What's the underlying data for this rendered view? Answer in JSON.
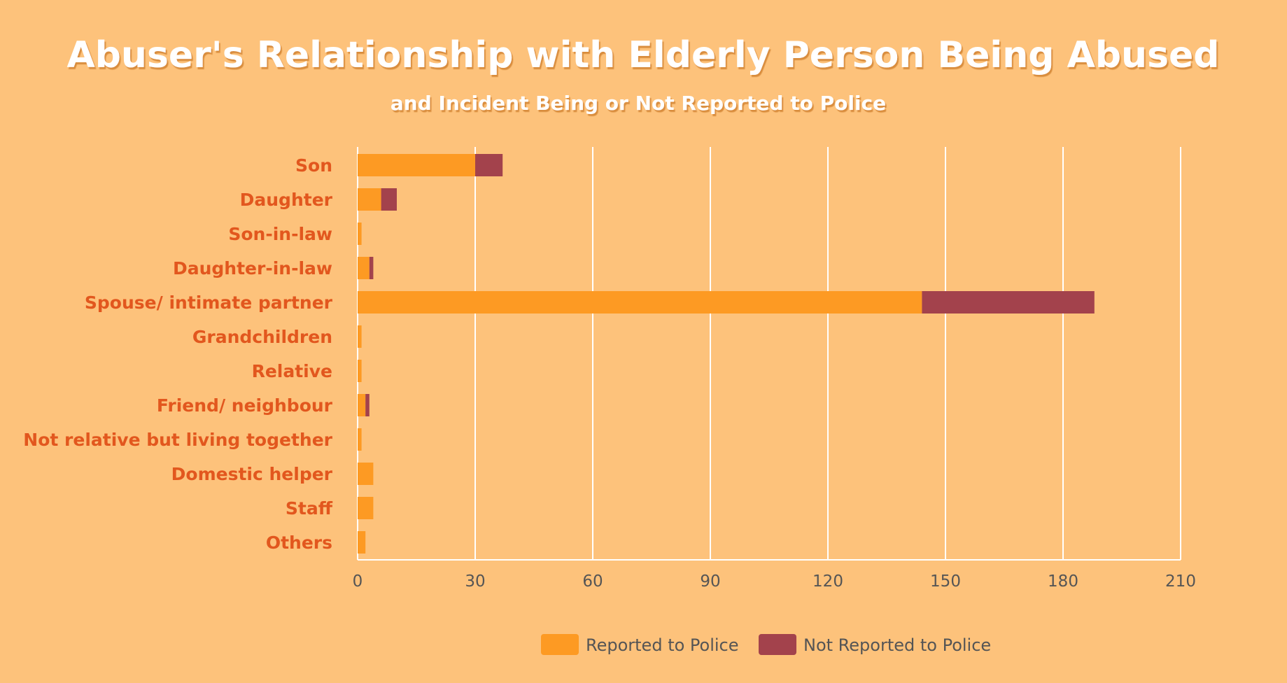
{
  "chart_data": {
    "type": "bar",
    "orientation": "horizontal",
    "stacked": true,
    "title": "Abuser's Relationship with Elderly Person Being Abused",
    "subtitle": "and Incident Being or Not Reported to Police",
    "xlabel": "",
    "ylabel": "",
    "xlim": [
      0,
      210
    ],
    "xticks": [
      0,
      30,
      60,
      90,
      120,
      150,
      180,
      210
    ],
    "grid": true,
    "legend_position": "bottom",
    "categories": [
      "Son",
      "Daughter",
      "Son-in-law",
      "Daughter-in-law",
      "Spouse/ intimate partner",
      "Grandchildren",
      "Relative",
      "Friend/ neighbour",
      "Not relative but living together",
      "Domestic helper",
      "Staff",
      "Others"
    ],
    "series": [
      {
        "name": "Reported to Police",
        "color": "#fd9a23",
        "values": [
          30,
          6,
          1,
          3,
          144,
          1,
          1,
          2,
          1,
          4,
          4,
          2
        ]
      },
      {
        "name": "Not Reported to Police",
        "color": "#a3424c",
        "values": [
          7,
          4,
          0,
          1,
          44,
          0,
          0,
          1,
          0,
          0,
          0,
          0
        ]
      }
    ]
  },
  "colors": {
    "background": "#fdc27b",
    "grid": "#ffffff",
    "category_text": "#e2571e",
    "tick_text": "#555555",
    "title_text": "#ffffff",
    "title_shadow": "#d98d3c"
  }
}
